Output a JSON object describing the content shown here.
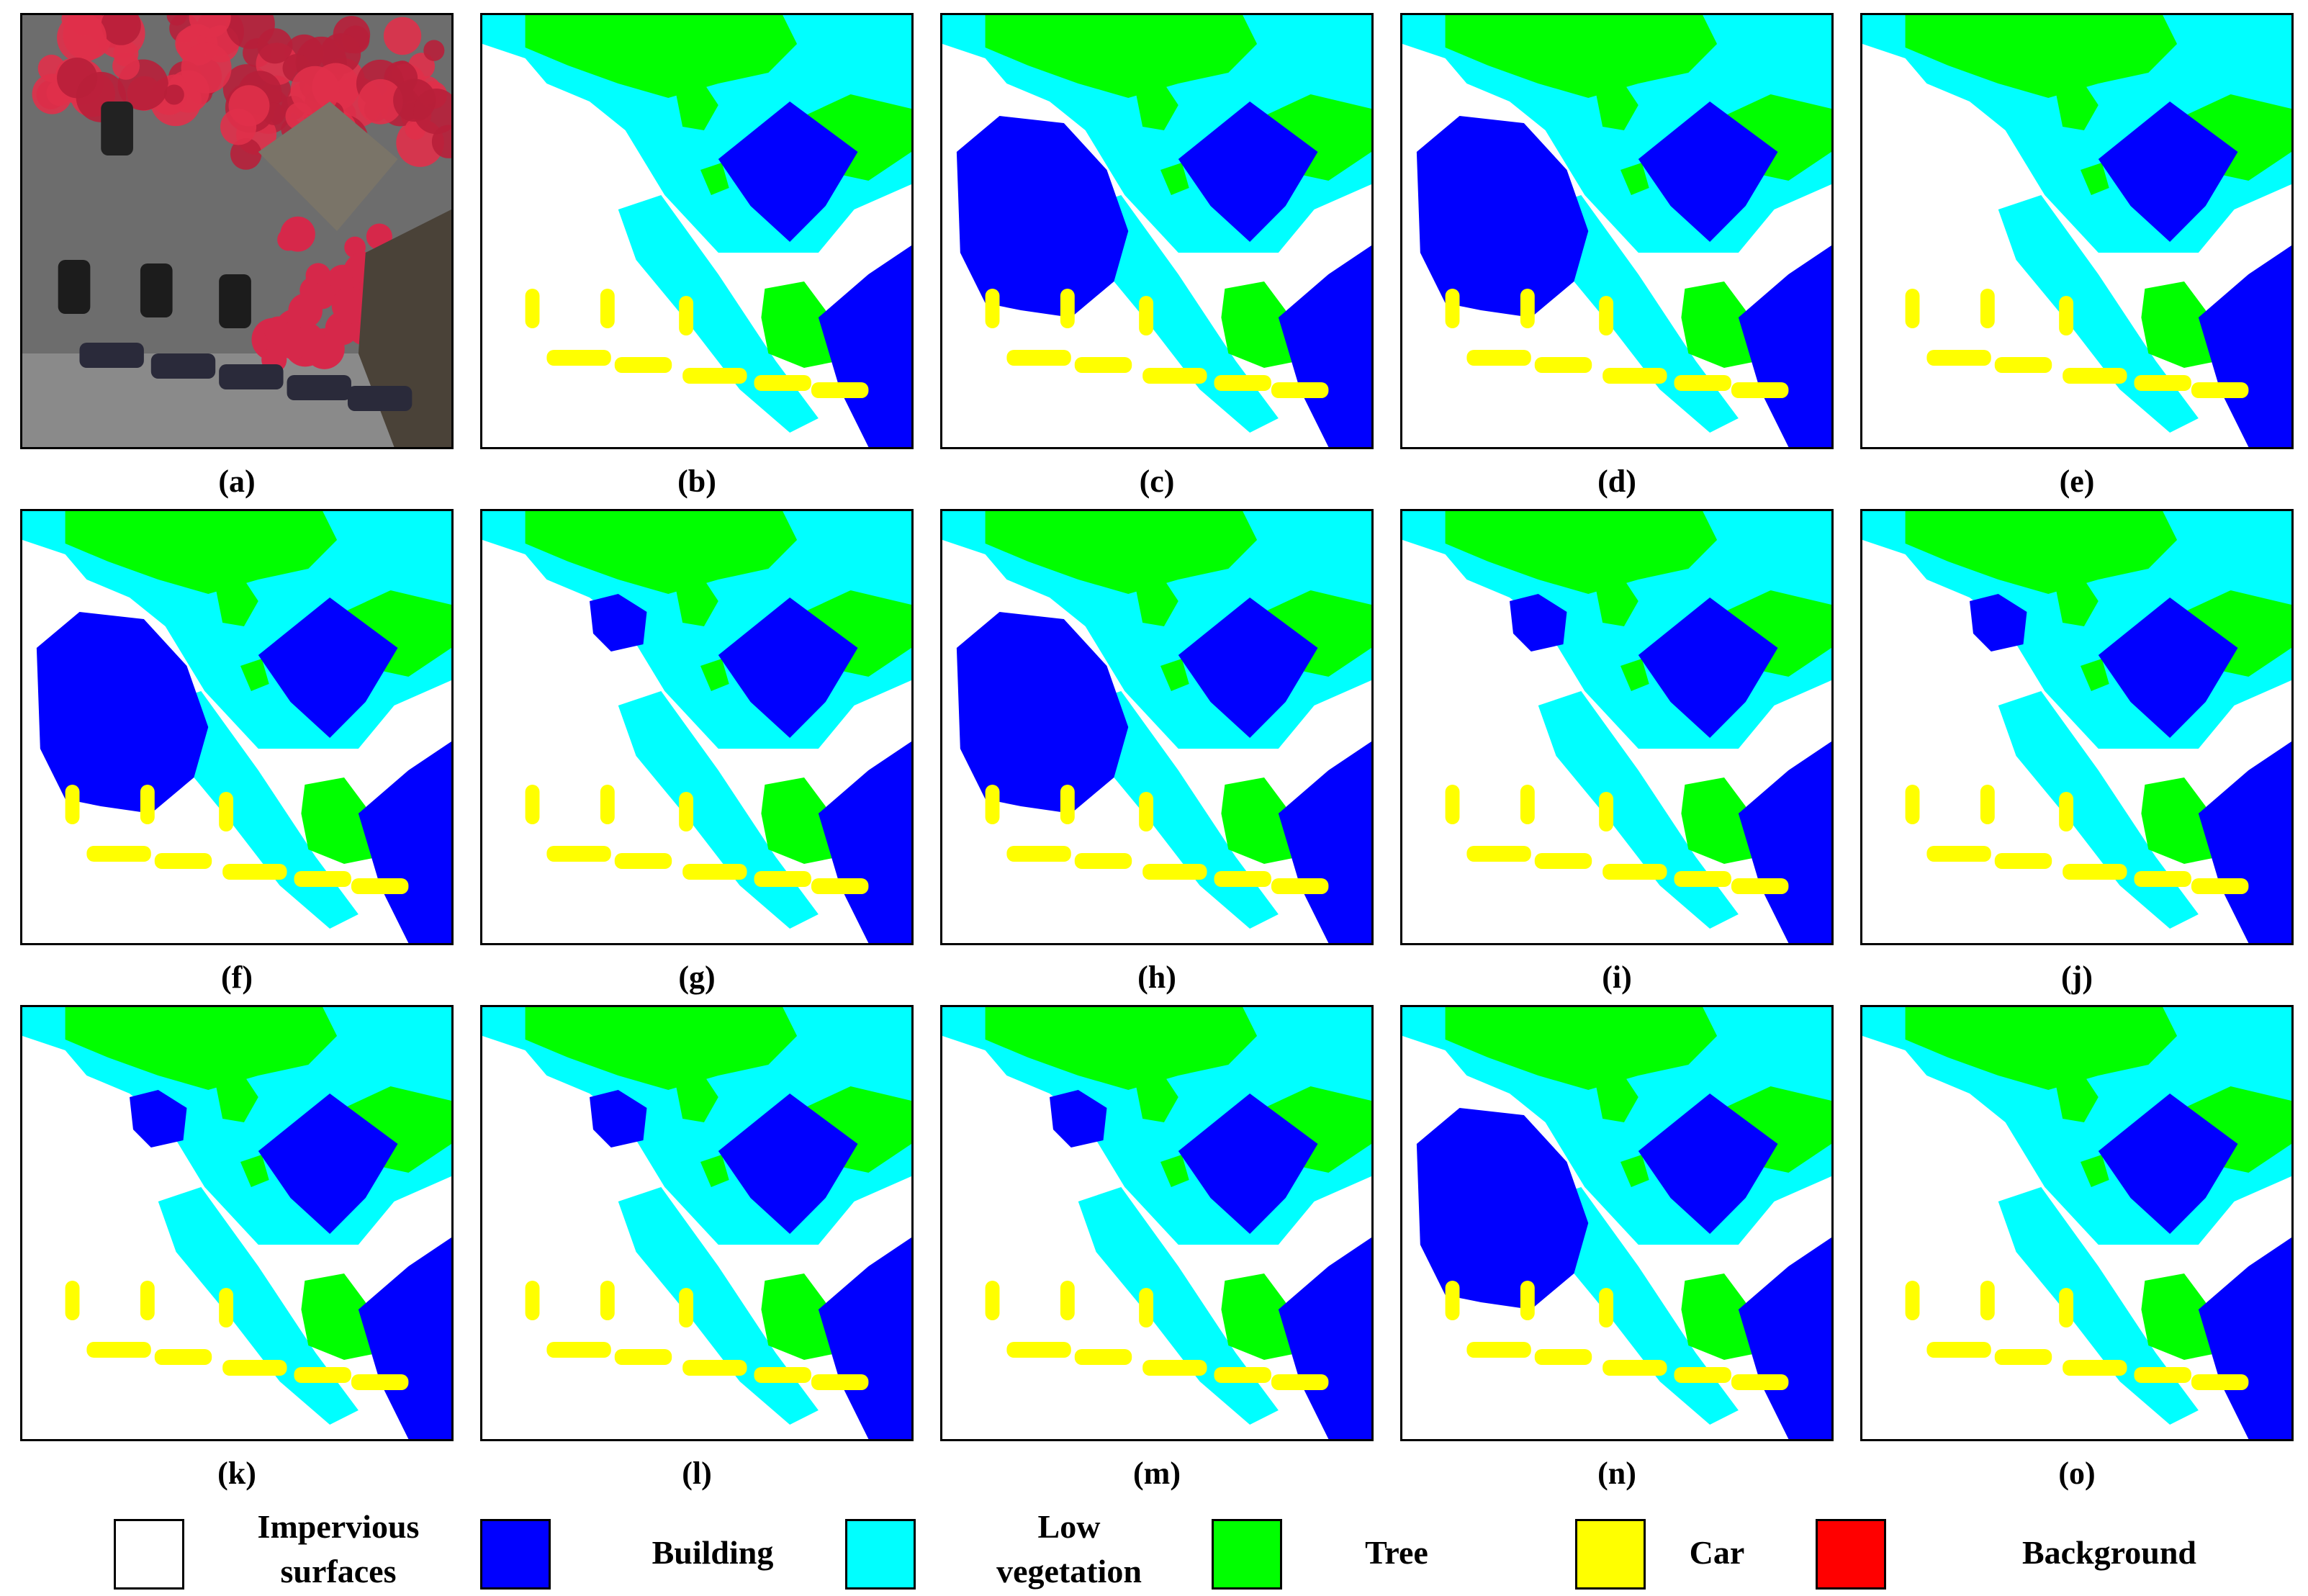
{
  "figure": {
    "panels": [
      {
        "id": "a",
        "label": "(a)",
        "kind": "aerial-image"
      },
      {
        "id": "b",
        "label": "(b)",
        "kind": "segmentation",
        "variant": "ground-truth"
      },
      {
        "id": "c",
        "label": "(c)",
        "kind": "segmentation",
        "variant": "big-building"
      },
      {
        "id": "d",
        "label": "(d)",
        "kind": "segmentation",
        "variant": "big-building"
      },
      {
        "id": "e",
        "label": "(e)",
        "kind": "segmentation",
        "variant": "clean"
      },
      {
        "id": "f",
        "label": "(f)",
        "kind": "segmentation",
        "variant": "big-building"
      },
      {
        "id": "g",
        "label": "(g)",
        "kind": "segmentation",
        "variant": "small-building"
      },
      {
        "id": "h",
        "label": "(h)",
        "kind": "segmentation",
        "variant": "big-building"
      },
      {
        "id": "i",
        "label": "(i)",
        "kind": "segmentation",
        "variant": "small-building"
      },
      {
        "id": "j",
        "label": "(j)",
        "kind": "segmentation",
        "variant": "small-building"
      },
      {
        "id": "k",
        "label": "(k)",
        "kind": "segmentation",
        "variant": "small-building"
      },
      {
        "id": "l",
        "label": "(l)",
        "kind": "segmentation",
        "variant": "small-building"
      },
      {
        "id": "m",
        "label": "(m)",
        "kind": "segmentation",
        "variant": "small-building"
      },
      {
        "id": "n",
        "label": "(n)",
        "kind": "segmentation",
        "variant": "big-building"
      },
      {
        "id": "o",
        "label": "(o)",
        "kind": "segmentation",
        "variant": "clean"
      }
    ],
    "legend": [
      {
        "id": "impervious",
        "line1": "Impervious",
        "line2": "surfaces",
        "color": "#ffffff"
      },
      {
        "id": "building",
        "line1": "Building",
        "line2": "",
        "color": "#0000ff"
      },
      {
        "id": "low-veg",
        "line1": "Low",
        "line2": "vegetation",
        "color": "#00ffff"
      },
      {
        "id": "tree",
        "line1": "Tree",
        "line2": "",
        "color": "#00ff00"
      },
      {
        "id": "car",
        "line1": "Car",
        "line2": "",
        "color": "#ffff00"
      },
      {
        "id": "background",
        "line1": "Background",
        "line2": "",
        "color": "#ff0000"
      }
    ],
    "colors": {
      "impervious": "#ffffff",
      "building": "#0000ff",
      "low_vegetation": "#00ffff",
      "tree": "#00ff00",
      "car": "#ffff00",
      "background": "#ff0000"
    }
  }
}
